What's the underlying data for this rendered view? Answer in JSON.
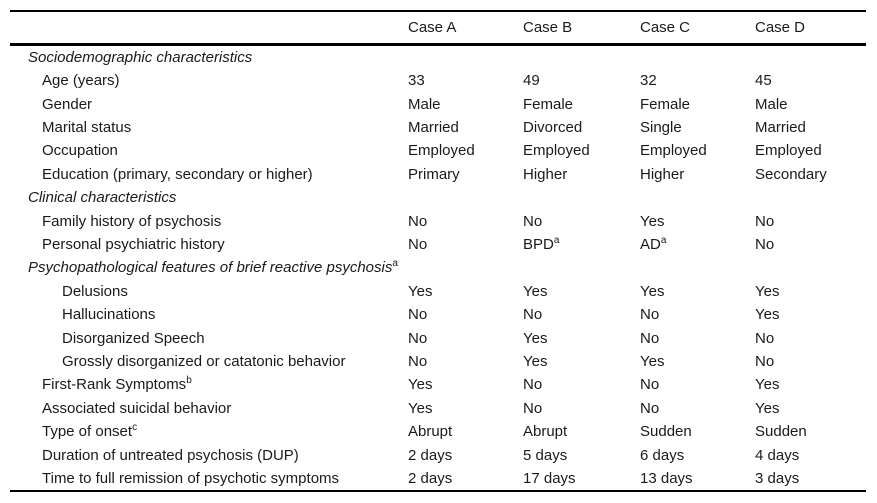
{
  "table": {
    "columns": [
      "",
      "Case A",
      "Case B",
      "Case C",
      "Case D"
    ],
    "rows": [
      {
        "type": "section",
        "indent": 0,
        "label": "Sociodemographic characteristics",
        "sup": "",
        "values": [
          "",
          "",
          "",
          ""
        ],
        "value_sups": [
          "",
          "",
          "",
          ""
        ]
      },
      {
        "type": "item",
        "indent": 1,
        "label": "Age (years)",
        "sup": "",
        "values": [
          "33",
          "49",
          "32",
          "45"
        ],
        "value_sups": [
          "",
          "",
          "",
          ""
        ]
      },
      {
        "type": "item",
        "indent": 1,
        "label": "Gender",
        "sup": "",
        "values": [
          "Male",
          "Female",
          "Female",
          "Male"
        ],
        "value_sups": [
          "",
          "",
          "",
          ""
        ]
      },
      {
        "type": "item",
        "indent": 1,
        "label": "Marital status",
        "sup": "",
        "values": [
          "Married",
          "Divorced",
          "Single",
          "Married"
        ],
        "value_sups": [
          "",
          "",
          "",
          ""
        ]
      },
      {
        "type": "item",
        "indent": 1,
        "label": "Occupation",
        "sup": "",
        "values": [
          "Employed",
          "Employed",
          "Employed",
          "Employed"
        ],
        "value_sups": [
          "",
          "",
          "",
          ""
        ]
      },
      {
        "type": "item",
        "indent": 1,
        "label": "Education (primary, secondary or higher)",
        "sup": "",
        "values": [
          "Primary",
          "Higher",
          "Higher",
          "Secondary"
        ],
        "value_sups": [
          "",
          "",
          "",
          ""
        ]
      },
      {
        "type": "section",
        "indent": 0,
        "label": "Clinical characteristics",
        "sup": "",
        "values": [
          "",
          "",
          "",
          ""
        ],
        "value_sups": [
          "",
          "",
          "",
          ""
        ]
      },
      {
        "type": "item",
        "indent": 1,
        "label": "Family history of psychosis",
        "sup": "",
        "values": [
          "No",
          "No",
          "Yes",
          "No"
        ],
        "value_sups": [
          "",
          "",
          "",
          ""
        ]
      },
      {
        "type": "item",
        "indent": 1,
        "label": "Personal psychiatric history",
        "sup": "",
        "values": [
          "No",
          "BPD",
          "AD",
          "No"
        ],
        "value_sups": [
          "",
          "a",
          "a",
          ""
        ]
      },
      {
        "type": "section",
        "indent": 0,
        "label": "Psychopathological features of brief reactive psychosis",
        "sup": "a",
        "values": [
          "",
          "",
          "",
          ""
        ],
        "value_sups": [
          "",
          "",
          "",
          ""
        ]
      },
      {
        "type": "item",
        "indent": 2,
        "label": "Delusions",
        "sup": "",
        "values": [
          "Yes",
          "Yes",
          "Yes",
          "Yes"
        ],
        "value_sups": [
          "",
          "",
          "",
          ""
        ]
      },
      {
        "type": "item",
        "indent": 2,
        "label": "Hallucinations",
        "sup": "",
        "values": [
          "No",
          "No",
          "No",
          "Yes"
        ],
        "value_sups": [
          "",
          "",
          "",
          ""
        ]
      },
      {
        "type": "item",
        "indent": 2,
        "label": "Disorganized Speech",
        "sup": "",
        "values": [
          "No",
          "Yes",
          "No",
          "No"
        ],
        "value_sups": [
          "",
          "",
          "",
          ""
        ]
      },
      {
        "type": "item",
        "indent": 2,
        "label": "Grossly disorganized or catatonic behavior",
        "sup": "",
        "values": [
          "No",
          "Yes",
          "Yes",
          "No"
        ],
        "value_sups": [
          "",
          "",
          "",
          ""
        ]
      },
      {
        "type": "item",
        "indent": 1,
        "label": "First-Rank Symptoms",
        "sup": "b",
        "values": [
          "Yes",
          "No",
          "No",
          "Yes"
        ],
        "value_sups": [
          "",
          "",
          "",
          ""
        ]
      },
      {
        "type": "item",
        "indent": 1,
        "label": "Associated suicidal behavior",
        "sup": "",
        "values": [
          "Yes",
          "No",
          "No",
          "Yes"
        ],
        "value_sups": [
          "",
          "",
          "",
          ""
        ]
      },
      {
        "type": "item",
        "indent": 1,
        "label": "Type of onset",
        "sup": "c",
        "values": [
          "Abrupt",
          "Abrupt",
          "Sudden",
          "Sudden"
        ],
        "value_sups": [
          "",
          "",
          "",
          ""
        ]
      },
      {
        "type": "item",
        "indent": 1,
        "label": "Duration of untreated psychosis (DUP)",
        "sup": "",
        "values": [
          "2 days",
          "5 days",
          "6 days",
          "4 days"
        ],
        "value_sups": [
          "",
          "",
          "",
          ""
        ]
      },
      {
        "type": "item",
        "indent": 1,
        "label": "Time to full remission of psychotic symptoms",
        "sup": "",
        "values": [
          "2 days",
          "17 days",
          "13 days",
          "3 days"
        ],
        "value_sups": [
          "",
          "",
          "",
          ""
        ]
      }
    ]
  }
}
